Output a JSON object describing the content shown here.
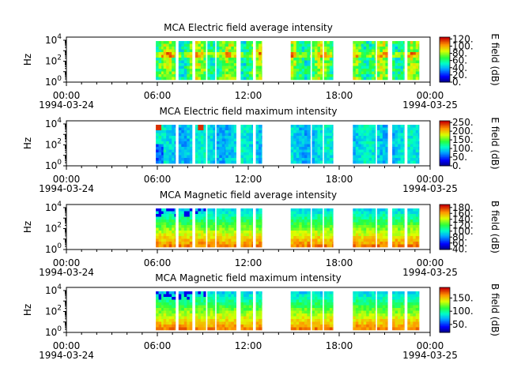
{
  "chart_data": [
    {
      "type": "heatmap",
      "title": "MCA  Electric field average intensity",
      "ylabel": "Hz",
      "colorbar_label": "E field (dB)",
      "colorbar_ticks": [
        "0.",
        "20.",
        "40.",
        "60.",
        "80.",
        "100.",
        "120."
      ],
      "colorbar_range": [
        0,
        125
      ],
      "y_ticks": [
        "10^0",
        "10^2",
        "10^4"
      ],
      "x_ticks": [
        "00:00\n1994-03-24",
        "06:00",
        "12:00",
        "18:00",
        "00:00\n1994-03-25"
      ],
      "x_range_hours": [
        0,
        24
      ],
      "data_blocks_hours": [
        [
          5.9,
          6.4
        ],
        [
          6.4,
          7.2
        ],
        [
          7.4,
          8.3
        ],
        [
          8.5,
          9.2
        ],
        [
          9.3,
          9.8
        ],
        [
          9.9,
          10.5
        ],
        [
          10.5,
          11.2
        ],
        [
          11.5,
          12.3
        ],
        [
          12.5,
          12.9
        ],
        [
          14.8,
          15.7
        ],
        [
          15.7,
          16.1
        ],
        [
          16.2,
          16.9
        ],
        [
          17.0,
          17.6
        ],
        [
          18.9,
          19.6
        ],
        [
          19.6,
          20.4
        ],
        [
          20.5,
          21.2
        ],
        [
          21.5,
          22.3
        ],
        [
          22.5,
          23.3
        ],
        [
          23.3,
          24.2
        ]
      ],
      "level": "mid"
    },
    {
      "type": "heatmap",
      "title": "MCA  Electric field maximum intensity",
      "ylabel": "Hz",
      "colorbar_label": "E field (dB)",
      "colorbar_ticks": [
        "0.",
        "50.",
        "100.",
        "150.",
        "200.",
        "250."
      ],
      "colorbar_range": [
        0,
        260
      ],
      "y_ticks": [
        "10^0",
        "10^2",
        "10^4"
      ],
      "x_ticks": [
        "00:00\n1994-03-24",
        "06:00",
        "12:00",
        "18:00",
        "00:00\n1994-03-25"
      ],
      "x_range_hours": [
        0,
        24
      ],
      "data_blocks_hours": [
        [
          5.9,
          6.4
        ],
        [
          6.4,
          7.2
        ],
        [
          7.4,
          8.3
        ],
        [
          8.5,
          9.2
        ],
        [
          9.3,
          9.8
        ],
        [
          9.9,
          10.5
        ],
        [
          10.5,
          11.2
        ],
        [
          11.5,
          12.3
        ],
        [
          12.5,
          12.9
        ],
        [
          14.8,
          15.7
        ],
        [
          15.7,
          16.1
        ],
        [
          16.2,
          16.9
        ],
        [
          17.0,
          17.6
        ],
        [
          18.9,
          19.6
        ],
        [
          19.6,
          20.4
        ],
        [
          20.5,
          21.2
        ],
        [
          21.5,
          22.3
        ],
        [
          22.5,
          23.3
        ],
        [
          23.3,
          24.2
        ]
      ],
      "level": "low"
    },
    {
      "type": "heatmap",
      "title": "MCA  Magnetic field average intensity",
      "ylabel": "Hz",
      "colorbar_label": "B field (dB)",
      "colorbar_ticks": [
        "40.",
        "60.",
        "80.",
        "100.",
        "120.",
        "140.",
        "160.",
        "180."
      ],
      "colorbar_range": [
        38,
        190
      ],
      "y_ticks": [
        "10^0",
        "10^2",
        "10^4"
      ],
      "x_ticks": [
        "00:00\n1994-03-24",
        "06:00",
        "12:00",
        "18:00",
        "00:00\n1994-03-25"
      ],
      "x_range_hours": [
        0,
        24
      ],
      "data_blocks_hours": [
        [
          5.9,
          6.4
        ],
        [
          6.4,
          7.2
        ],
        [
          7.4,
          8.3
        ],
        [
          8.5,
          9.2
        ],
        [
          9.3,
          9.8
        ],
        [
          9.9,
          10.5
        ],
        [
          10.5,
          11.2
        ],
        [
          11.5,
          12.3
        ],
        [
          12.5,
          12.9
        ],
        [
          14.8,
          15.7
        ],
        [
          15.7,
          16.1
        ],
        [
          16.2,
          16.9
        ],
        [
          17.0,
          17.6
        ],
        [
          18.9,
          19.6
        ],
        [
          19.6,
          20.4
        ],
        [
          20.5,
          21.2
        ],
        [
          21.5,
          22.3
        ],
        [
          22.5,
          23.3
        ],
        [
          23.3,
          24.2
        ]
      ],
      "level": "magnetic"
    },
    {
      "type": "heatmap",
      "title": "MCA  Magnetic field maximum intensity",
      "ylabel": "Hz",
      "colorbar_label": "B field (dB)",
      "colorbar_ticks": [
        "50.",
        "100.",
        "150."
      ],
      "colorbar_range": [
        20,
        190
      ],
      "y_ticks": [
        "10^0",
        "10^2",
        "10^4"
      ],
      "x_ticks": [
        "00:00\n1994-03-24",
        "06:00",
        "12:00",
        "18:00",
        "00:00\n1994-03-25"
      ],
      "x_range_hours": [
        0,
        24
      ],
      "data_blocks_hours": [
        [
          5.9,
          6.4
        ],
        [
          6.4,
          7.2
        ],
        [
          7.4,
          8.3
        ],
        [
          8.5,
          9.2
        ],
        [
          9.3,
          9.8
        ],
        [
          9.9,
          10.5
        ],
        [
          10.5,
          11.2
        ],
        [
          11.5,
          12.3
        ],
        [
          12.5,
          12.9
        ],
        [
          14.8,
          15.7
        ],
        [
          15.7,
          16.1
        ],
        [
          16.2,
          16.9
        ],
        [
          17.0,
          17.6
        ],
        [
          18.9,
          19.6
        ],
        [
          19.6,
          20.4
        ],
        [
          20.5,
          21.2
        ],
        [
          21.5,
          22.3
        ],
        [
          22.5,
          23.3
        ],
        [
          23.3,
          24.2
        ]
      ],
      "level": "magnetic"
    }
  ]
}
